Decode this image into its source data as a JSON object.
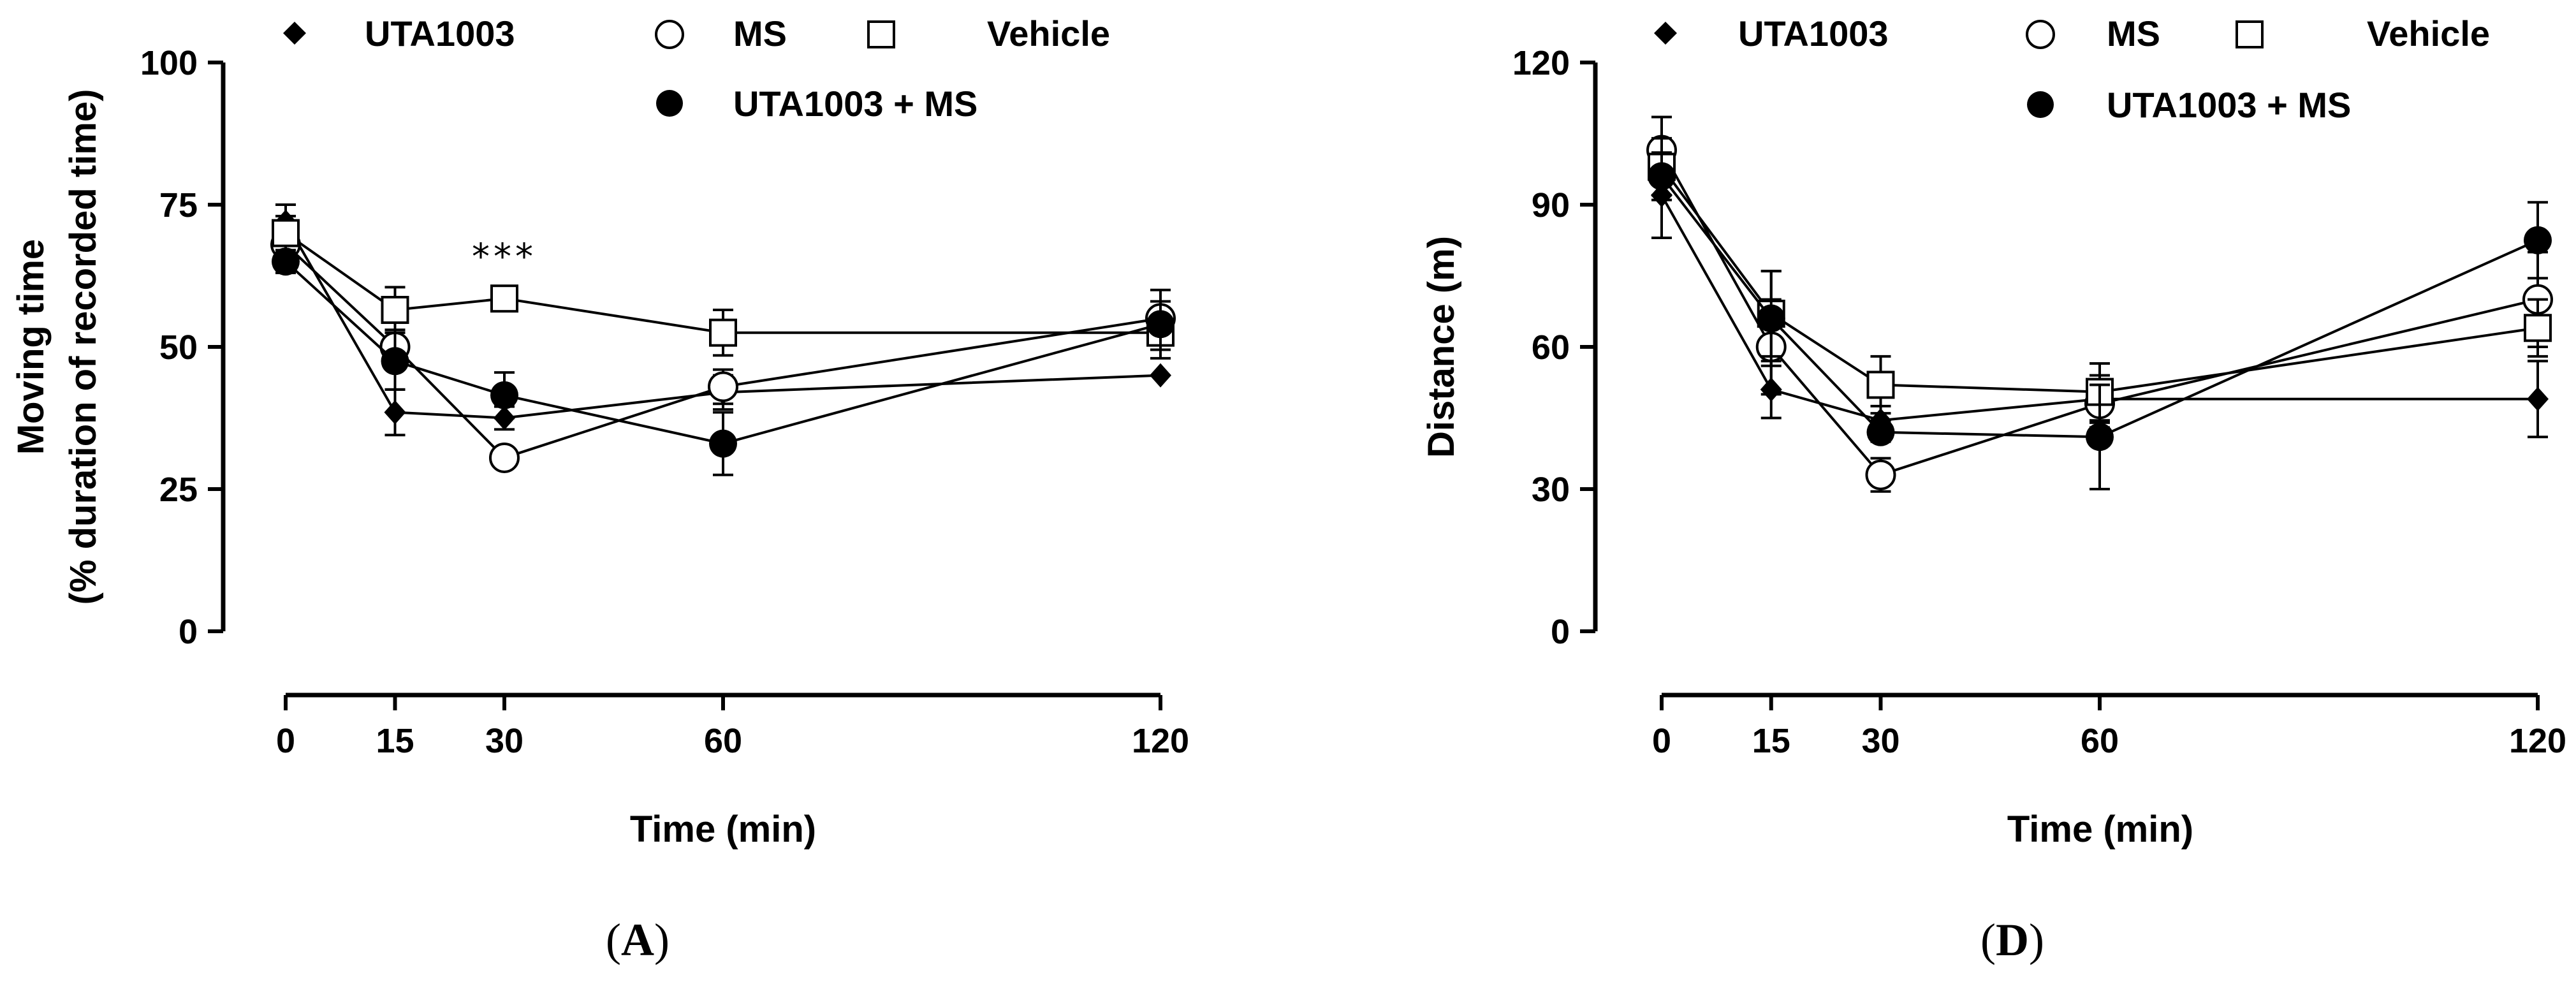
{
  "colors": {
    "ink": "#000000",
    "paper": "#ffffff"
  },
  "chart_data": [
    {
      "type": "line",
      "panel_label": "A",
      "title": "",
      "xlabel": "Time (min)",
      "ylabel_line1": "Moving time",
      "ylabel_line2": "(% duration of recorded time)",
      "xlim": [
        0,
        120
      ],
      "ylim": [
        0,
        100
      ],
      "x": [
        0,
        15,
        30,
        60,
        120
      ],
      "x_tick_labels": [
        "0",
        "15",
        "30",
        "60",
        "120"
      ],
      "y_ticks": [
        0,
        25,
        50,
        75,
        100
      ],
      "y_tick_labels": [
        "0",
        "25",
        "50",
        "75",
        "100"
      ],
      "grid": false,
      "legend": [
        {
          "name": "UTA1003",
          "marker": "diamond"
        },
        {
          "name": "MS",
          "marker": "open-circle"
        },
        {
          "name": "Vehicle",
          "marker": "open-square"
        },
        {
          "name": "UTA1003 + MS",
          "marker": "filled-circle"
        }
      ],
      "annotations": [
        {
          "text": "***",
          "x": 30,
          "y": 66
        }
      ],
      "series": [
        {
          "name": "UTA1003",
          "marker": "diamond",
          "values": [
            72,
            38.5,
            37.5,
            42,
            45
          ],
          "errors": [
            3,
            4,
            2,
            3,
            0
          ]
        },
        {
          "name": "MS",
          "marker": "open-circle",
          "values": [
            68,
            50,
            30.5,
            43,
            55
          ],
          "errors": [
            3,
            3,
            0,
            3,
            3
          ]
        },
        {
          "name": "Vehicle",
          "marker": "open-square",
          "values": [
            70,
            56.5,
            58.5,
            52.5,
            52.5
          ],
          "errors": [
            3,
            4,
            0,
            4,
            3
          ]
        },
        {
          "name": "UTA1003 + MS",
          "marker": "filled-circle",
          "values": [
            65,
            47.5,
            41.5,
            33,
            54
          ],
          "errors": [
            2,
            5,
            4,
            5.5,
            6
          ]
        }
      ]
    },
    {
      "type": "line",
      "panel_label": "D",
      "title": "",
      "xlabel": "Time (min)",
      "ylabel_line1": "Distance (m)",
      "ylabel_line2": "",
      "xlim": [
        0,
        120
      ],
      "ylim": [
        0,
        120
      ],
      "x": [
        0,
        15,
        30,
        60,
        120
      ],
      "x_tick_labels": [
        "0",
        "15",
        "30",
        "60",
        "120"
      ],
      "y_ticks": [
        0,
        30,
        60,
        90,
        120
      ],
      "y_tick_labels": [
        "0",
        "30",
        "60",
        "90",
        "120"
      ],
      "grid": false,
      "legend": [
        {
          "name": "UTA1003",
          "marker": "diamond"
        },
        {
          "name": "MS",
          "marker": "open-circle"
        },
        {
          "name": "Vehicle",
          "marker": "open-square"
        },
        {
          "name": "UTA1003 + MS",
          "marker": "filled-circle"
        }
      ],
      "annotations": [],
      "series": [
        {
          "name": "UTA1003",
          "marker": "diamond",
          "values": [
            92,
            51,
            44.5,
            49,
            49
          ],
          "errors": [
            9,
            6,
            3,
            5,
            8
          ]
        },
        {
          "name": "MS",
          "marker": "open-circle",
          "values": [
            101.5,
            60,
            33,
            48,
            70
          ],
          "errors": [
            7,
            10,
            3.5,
            5,
            10
          ]
        },
        {
          "name": "Vehicle",
          "marker": "open-square",
          "values": [
            98,
            67,
            52,
            50.5,
            64
          ],
          "errors": [
            6,
            9,
            6,
            6,
            6
          ]
        },
        {
          "name": "UTA1003 + MS",
          "marker": "filled-circle",
          "values": [
            96,
            66,
            42,
            41,
            82.5
          ],
          "errors": [
            5,
            10,
            2,
            11,
            8
          ]
        }
      ]
    }
  ]
}
